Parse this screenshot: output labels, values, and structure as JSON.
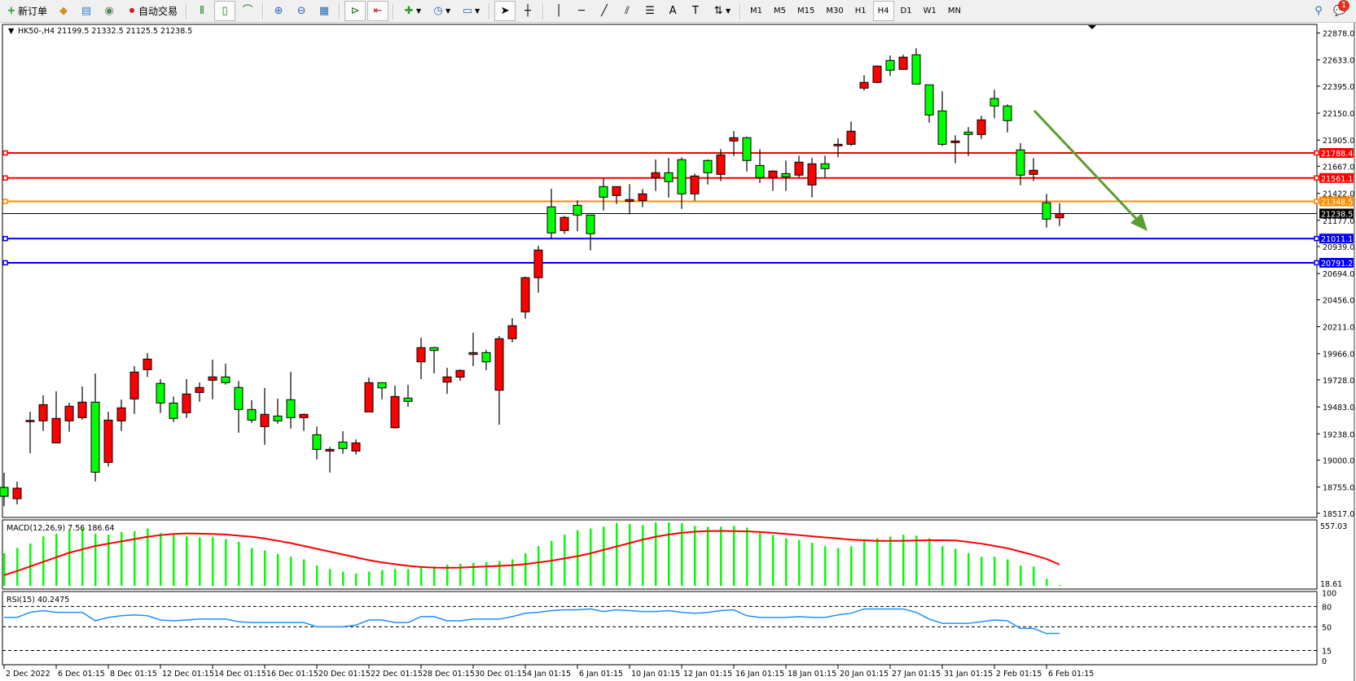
{
  "toolbar": {
    "new_order": "新订单",
    "auto_trading": "自动交易",
    "timeframes": [
      "M1",
      "M5",
      "M15",
      "M30",
      "H1",
      "H4",
      "D1",
      "W1",
      "MN"
    ],
    "active_timeframe": "H4",
    "notification_count": "1",
    "icons": [
      "new-order-icon",
      "navigator-icon",
      "market-watch-icon",
      "signals-icon",
      "auto-trading-icon",
      "bar-chart-icon",
      "candlestick-icon",
      "line-chart-icon",
      "zoom-in-icon",
      "zoom-out-icon",
      "tile-windows-icon",
      "auto-scroll-icon",
      "chart-shift-icon",
      "indicators-icon",
      "periods-icon",
      "templates-icon",
      "cursor-icon",
      "crosshair-icon",
      "vertical-line-icon",
      "horizontal-line-icon",
      "trendline-icon",
      "equidistant-channel-icon",
      "fibonacci-icon",
      "text-icon",
      "text-label-icon",
      "arrows-icon",
      "search-icon",
      "notifications-icon"
    ]
  },
  "chart": {
    "header": "HK50-,H4  21199.5 21332.5 21125.5 21238.5",
    "colors": {
      "bull": "#ff0000",
      "bear": "#00ff00",
      "resistance": "#ff0000",
      "pivot": "#ff8c00",
      "support": "#0000ff",
      "bid": "#000000",
      "arrow": "#5a9e32",
      "macd_hist": "#00ff00",
      "macd_signal": "#ff0000",
      "rsi": "#1e90ff"
    },
    "price_axis": [
      "22878.0",
      "22633.0",
      "22395.0",
      "22150.0",
      "21905.0",
      "21667.0",
      "21422.0",
      "21177.0",
      "20939.0",
      "20694.0",
      "20456.0",
      "20211.0",
      "19966.0",
      "19728.0",
      "19483.0",
      "19238.0",
      "19000.0",
      "18755.0",
      "18517.0"
    ],
    "levels": [
      {
        "value": "21788.4",
        "kind": "resistance"
      },
      {
        "value": "21561.1",
        "kind": "resistance"
      },
      {
        "value": "21348.5",
        "kind": "pivot"
      },
      {
        "value": "21238.5",
        "kind": "bid"
      },
      {
        "value": "21011.1",
        "kind": "support"
      },
      {
        "value": "20791.2",
        "kind": "support"
      }
    ],
    "time_axis": [
      "2 Dec 2022",
      "6 Dec 01:15",
      "8 Dec 01:15",
      "12 Dec 01:15",
      "14 Dec 01:15",
      "16 Dec 01:15",
      "20 Dec 01:15",
      "22 Dec 01:15",
      "28 Dec 01:15",
      "30 Dec 01:15",
      "4 Jan 01:15",
      "6 Jan 01:15",
      "10 Jan 01:15",
      "12 Jan 01:15",
      "16 Jan 01:15",
      "18 Jan 01:15",
      "20 Jan 01:15",
      "27 Jan 01:15",
      "31 Jan 01:15",
      "2 Feb 01:15",
      "6 Feb 01:15"
    ]
  },
  "macd": {
    "label": "MACD(12,26,9) 7.56 186.64",
    "axis_top": "557.03",
    "axis_bottom": "18.61"
  },
  "rsi": {
    "label": "RSI(15) 40.2475",
    "axis": [
      "100",
      "80",
      "50",
      "15",
      "0"
    ],
    "levels": [
      80,
      50,
      15
    ]
  },
  "chart_data": {
    "type": "candlestick",
    "symbol": "HK50-",
    "timeframe": "H4",
    "ohlc": [
      [
        18752,
        18885,
        18582,
        18671
      ],
      [
        18649,
        18804,
        18597,
        18745
      ],
      [
        19360,
        19439,
        19062,
        19360
      ],
      [
        19356,
        19587,
        19264,
        19503
      ],
      [
        19156,
        19624,
        19156,
        19378
      ],
      [
        19356,
        19520,
        19257,
        19489
      ],
      [
        19385,
        19668,
        19367,
        19526
      ],
      [
        19526,
        19786,
        18806,
        18890
      ],
      [
        18979,
        19439,
        18942,
        19363
      ],
      [
        19356,
        19550,
        19264,
        19474
      ],
      [
        19555,
        19853,
        19419,
        19799
      ],
      [
        19821,
        19971,
        19755,
        19917
      ],
      [
        19696,
        19735,
        19427,
        19518
      ],
      [
        19518,
        19577,
        19345,
        19378
      ],
      [
        19430,
        19735,
        19382,
        19600
      ],
      [
        19614,
        19705,
        19530,
        19659
      ],
      [
        19725,
        19912,
        19552,
        19755
      ],
      [
        19755,
        19875,
        19685,
        19703
      ],
      [
        19659,
        19718,
        19249,
        19459
      ],
      [
        19459,
        19543,
        19338,
        19363
      ],
      [
        19304,
        19654,
        19139,
        19415
      ],
      [
        19400,
        19557,
        19331,
        19356
      ],
      [
        19548,
        19801,
        19286,
        19385
      ],
      [
        19385,
        19422,
        19264,
        19415
      ],
      [
        19230,
        19304,
        19006,
        19097
      ],
      [
        19082,
        19119,
        18887,
        19097
      ],
      [
        19164,
        19262,
        19057,
        19105
      ],
      [
        19082,
        19188,
        19050,
        19156
      ],
      [
        19437,
        19749,
        19437,
        19703
      ],
      [
        19703,
        19705,
        19552,
        19655
      ],
      [
        19294,
        19676,
        19286,
        19577
      ],
      [
        19563,
        19683,
        19484,
        19533
      ],
      [
        19892,
        20112,
        19735,
        20021
      ],
      [
        20021,
        20028,
        19786,
        19995
      ],
      [
        19708,
        19838,
        19602,
        19755
      ],
      [
        19753,
        19823,
        19720,
        19814
      ],
      [
        19959,
        20156,
        19853,
        19976
      ],
      [
        19976,
        20001,
        19816,
        19892
      ],
      [
        19634,
        20126,
        19321,
        20102
      ],
      [
        20102,
        20289,
        20069,
        20220
      ],
      [
        20346,
        20666,
        20284,
        20656
      ],
      [
        20656,
        20946,
        20520,
        20907
      ],
      [
        21299,
        21463,
        21011,
        21062
      ],
      [
        21084,
        21217,
        21055,
        21203
      ],
      [
        21313,
        21358,
        21077,
        21225
      ],
      [
        21225,
        21225,
        20904,
        21055
      ],
      [
        21483,
        21557,
        21266,
        21387
      ],
      [
        21402,
        21483,
        21325,
        21483
      ],
      [
        21350,
        21505,
        21232,
        21365
      ],
      [
        21357,
        21461,
        21296,
        21417
      ],
      [
        21565,
        21729,
        21443,
        21609
      ],
      [
        21609,
        21744,
        21384,
        21528
      ],
      [
        21727,
        21749,
        21281,
        21417
      ],
      [
        21417,
        21601,
        21355,
        21579
      ],
      [
        21720,
        21729,
        21502,
        21609
      ],
      [
        21594,
        21823,
        21532,
        21771
      ],
      [
        21897,
        21988,
        21761,
        21927
      ],
      [
        21927,
        21936,
        21621,
        21720
      ],
      [
        21675,
        21823,
        21515,
        21565
      ],
      [
        21565,
        21631,
        21443,
        21624
      ],
      [
        21601,
        21720,
        21443,
        21572
      ],
      [
        21587,
        21764,
        21565,
        21705
      ],
      [
        21498,
        21744,
        21384,
        21690
      ],
      [
        21690,
        21764,
        21565,
        21646
      ],
      [
        21853,
        21921,
        21749,
        21867
      ],
      [
        21867,
        22074,
        21853,
        21986
      ],
      [
        22377,
        22495,
        22355,
        22429
      ],
      [
        22429,
        22584,
        22421,
        22577
      ],
      [
        22628,
        22673,
        22488,
        22540
      ],
      [
        22547,
        22680,
        22547,
        22658
      ],
      [
        22680,
        22739,
        22414,
        22414
      ],
      [
        22407,
        22407,
        22064,
        22133
      ],
      [
        22170,
        22348,
        21853,
        21867
      ],
      [
        21882,
        21949,
        21695,
        21897
      ],
      [
        21978,
        22023,
        21761,
        21956
      ],
      [
        21956,
        22126,
        21916,
        22089
      ],
      [
        22283,
        22362,
        22104,
        22215
      ],
      [
        22215,
        22229,
        21975,
        22082
      ],
      [
        21816,
        21877,
        21495,
        21587
      ],
      [
        21594,
        21742,
        21532,
        21631
      ],
      [
        21336,
        21417,
        21111,
        21188
      ],
      [
        21199.5,
        21332.5,
        21125.5,
        21238.5
      ]
    ],
    "macd_hist": [
      286,
      333,
      372,
      433,
      457,
      495,
      503,
      457,
      449,
      472,
      480,
      503,
      464,
      449,
      433,
      426,
      426,
      410,
      387,
      333,
      310,
      279,
      255,
      232,
      178,
      147,
      124,
      108,
      124,
      139,
      147,
      147,
      163,
      170,
      186,
      194,
      201,
      209,
      217,
      232,
      286,
      348,
      395,
      449,
      488,
      503,
      519,
      550,
      542,
      534,
      557,
      557,
      550,
      526,
      519,
      519,
      526,
      511,
      464,
      449,
      418,
      402,
      379,
      348,
      333,
      348,
      395,
      418,
      433,
      449,
      441,
      418,
      348,
      325,
      286,
      255,
      255,
      232,
      178,
      170,
      62,
      7.56
    ],
    "macd_signal": [
      93,
      130,
      170,
      210,
      250,
      290,
      320,
      350,
      370,
      390,
      410,
      430,
      445,
      455,
      460,
      458,
      455,
      450,
      440,
      430,
      415,
      395,
      375,
      350,
      325,
      300,
      275,
      250,
      225,
      205,
      190,
      175,
      165,
      160,
      158,
      160,
      165,
      170,
      175,
      180,
      190,
      205,
      220,
      240,
      260,
      285,
      315,
      345,
      375,
      405,
      430,
      450,
      465,
      475,
      480,
      482,
      480,
      478,
      472,
      465,
      455,
      445,
      435,
      425,
      415,
      405,
      400,
      395,
      395,
      395,
      398,
      400,
      400,
      398,
      385,
      370,
      350,
      330,
      300,
      270,
      235,
      186.64
    ],
    "rsi": [
      63.8,
      63.8,
      71.3,
      73.8,
      71.3,
      71.3,
      71.3,
      58.8,
      63.8,
      66.3,
      67.5,
      66.3,
      60,
      58.8,
      60,
      61.3,
      61.3,
      61.3,
      57.5,
      56.3,
      56.3,
      56.3,
      56.3,
      56.3,
      50,
      50,
      50,
      52.5,
      60,
      60,
      56.3,
      56.3,
      65,
      65,
      58.8,
      58.8,
      61.3,
      61.3,
      61.3,
      65,
      70,
      71.3,
      73.8,
      75,
      75,
      76.3,
      72.5,
      75,
      73.8,
      72.5,
      72.5,
      73.8,
      71.3,
      70,
      71.3,
      73.8,
      75,
      66.3,
      63.8,
      63.8,
      63.8,
      65,
      63.8,
      63.8,
      67.5,
      70,
      76.3,
      76.3,
      76.3,
      76.3,
      71.3,
      61.3,
      55,
      55,
      55,
      57.5,
      60,
      58.8,
      47.5,
      47.5,
      40,
      40.2475
    ],
    "macd_range": [
      0,
      557.03
    ],
    "rsi_range": [
      0,
      100
    ],
    "price_range": [
      18517,
      22878
    ]
  }
}
